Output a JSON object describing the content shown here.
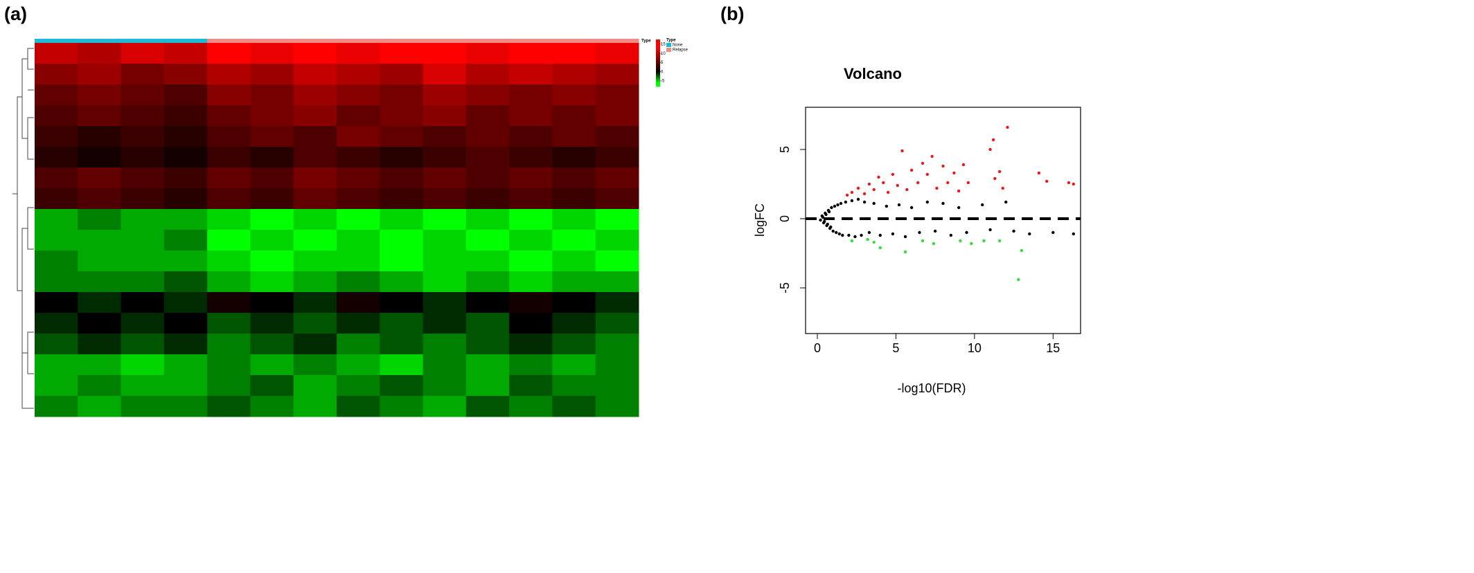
{
  "chart_data": [
    {
      "type": "heatmap",
      "panel": "(a)",
      "annotation_label": "Type",
      "legend_title": "Type",
      "types": [
        {
          "name": "None",
          "color": "#1fb8d6"
        },
        {
          "name": "Relapse",
          "color": "#f08a85"
        }
      ],
      "column_types": [
        0,
        0,
        0,
        0,
        1,
        1,
        1,
        1,
        1,
        1,
        1,
        1,
        1,
        1
      ],
      "colorbar_lim": [
        -8,
        17.6
      ],
      "colorbar_ticks": [
        15,
        10,
        5,
        0,
        -5
      ],
      "values": [
        [
          10,
          9,
          11,
          10,
          13,
          12,
          14,
          12,
          13,
          15,
          12,
          13,
          14,
          12
        ],
        [
          7,
          8,
          6,
          7,
          9,
          8,
          10,
          9,
          8,
          11,
          9,
          10,
          9,
          8
        ],
        [
          5,
          6,
          5,
          4,
          7,
          6,
          8,
          7,
          6,
          8,
          7,
          6,
          7,
          6
        ],
        [
          4,
          5,
          4,
          3,
          5,
          6,
          7,
          5,
          6,
          7,
          5,
          6,
          5,
          6
        ],
        [
          3,
          2,
          3,
          2,
          4,
          5,
          4,
          6,
          5,
          4,
          5,
          4,
          5,
          4
        ],
        [
          2,
          1,
          2,
          1,
          3,
          2,
          4,
          3,
          2,
          3,
          4,
          3,
          2,
          3
        ],
        [
          4,
          5,
          4,
          3,
          5,
          4,
          6,
          5,
          4,
          5,
          4,
          5,
          4,
          5
        ],
        [
          3,
          4,
          3,
          2,
          4,
          3,
          5,
          4,
          3,
          4,
          3,
          4,
          3,
          4
        ],
        [
          -4,
          -3,
          -4,
          -4,
          -5,
          -6,
          -5,
          -6,
          -5,
          -6,
          -5,
          -6,
          -5,
          -6
        ],
        [
          -4,
          -4,
          -4,
          -3,
          -6,
          -5,
          -6,
          -5,
          -6,
          -5,
          -6,
          -5,
          -6,
          -5
        ],
        [
          -3,
          -4,
          -4,
          -4,
          -5,
          -6,
          -5,
          -5,
          -6,
          -5,
          -5,
          -6,
          -5,
          -6
        ],
        [
          -3,
          -3,
          -3,
          -2,
          -4,
          -5,
          -4,
          -3,
          -4,
          -5,
          -4,
          -5,
          -4,
          -4
        ],
        [
          0,
          -1,
          0,
          -1,
          1,
          0,
          -1,
          1,
          0,
          -1,
          0,
          1,
          0,
          -1
        ],
        [
          -1,
          0,
          -1,
          0,
          -2,
          -1,
          -2,
          -1,
          -2,
          -1,
          -2,
          0,
          -1,
          -2
        ],
        [
          -2,
          -1,
          -2,
          -1,
          -3,
          -2,
          -1,
          -3,
          -2,
          -3,
          -2,
          -1,
          -2,
          -3
        ],
        [
          -4,
          -4,
          -5,
          -4,
          -3,
          -4,
          -3,
          -4,
          -5,
          -3,
          -4,
          -3,
          -4,
          -3
        ],
        [
          -4,
          -3,
          -4,
          -4,
          -3,
          -2,
          -4,
          -3,
          -2,
          -3,
          -4,
          -2,
          -3,
          -3
        ],
        [
          -3,
          -4,
          -3,
          -3,
          -2,
          -3,
          -4,
          -2,
          -3,
          -4,
          -2,
          -3,
          -2,
          -3
        ]
      ]
    },
    {
      "type": "scatter",
      "panel": "(b)",
      "title": "Volcano",
      "x_label": "-log10(FDR)",
      "y_label": "logFC",
      "xlim": [
        -0.75,
        16.75
      ],
      "ylim": [
        -8.3,
        8.05
      ],
      "xticks": [
        0,
        5,
        10,
        15
      ],
      "yticks": [
        -5,
        0,
        5
      ],
      "hline": 0,
      "series": [
        {
          "color": "#000000",
          "x": [
            0.3,
            0.4,
            0.5,
            0.6,
            0.7,
            0.8,
            0.9,
            1.0,
            1.1,
            1.2,
            1.3,
            1.4,
            1.5,
            1.6,
            1.8,
            2.0,
            2.2,
            2.4,
            2.6,
            2.8,
            3.0,
            3.3,
            3.6,
            4.0,
            4.4,
            4.8,
            5.2,
            5.6,
            6.0,
            6.5,
            7.0,
            7.5,
            8.0,
            8.5,
            9.0,
            9.5,
            10.5,
            11.0,
            12.0,
            12.5,
            13.5,
            15.0,
            16.3,
            0.2,
            0.35,
            0.45,
            0.55,
            0.65,
            0.75,
            0.85
          ],
          "values": [
            0.2,
            -0.3,
            0.4,
            -0.5,
            0.6,
            -0.7,
            0.8,
            -0.9,
            0.9,
            -1.0,
            1.0,
            -1.1,
            1.1,
            -1.2,
            1.2,
            -1.2,
            1.3,
            -1.3,
            1.4,
            -1.2,
            1.2,
            -1.0,
            1.1,
            -1.2,
            0.9,
            -1.1,
            1.0,
            -1.3,
            0.8,
            -1.0,
            1.2,
            -0.9,
            1.1,
            -1.2,
            0.8,
            -1.0,
            1.0,
            -0.8,
            1.2,
            -0.9,
            -1.1,
            -1.0,
            -1.1,
            -0.1,
            0.1,
            -0.2,
            0.3,
            -0.4,
            0.5,
            -0.6
          ]
        },
        {
          "color": "#e41a1c",
          "x": [
            1.9,
            2.2,
            2.6,
            3.0,
            3.3,
            3.6,
            3.9,
            4.2,
            4.5,
            4.8,
            5.1,
            5.4,
            5.7,
            6.0,
            6.4,
            6.7,
            7.0,
            7.3,
            7.6,
            8.0,
            8.3,
            8.7,
            9.0,
            9.3,
            9.6,
            11.0,
            11.2,
            11.3,
            11.6,
            11.8,
            12.1,
            14.1,
            14.6,
            16.0,
            16.3
          ],
          "values": [
            1.7,
            1.9,
            2.2,
            1.8,
            2.5,
            2.1,
            3.0,
            2.6,
            1.9,
            3.2,
            2.4,
            4.9,
            2.1,
            3.5,
            2.6,
            4.0,
            3.2,
            4.5,
            2.2,
            3.8,
            2.6,
            3.3,
            2.0,
            3.9,
            2.6,
            5.0,
            5.7,
            2.9,
            3.4,
            2.2,
            6.6,
            3.3,
            2.7,
            2.6,
            2.5
          ]
        },
        {
          "color": "#33dd33",
          "x": [
            3.2,
            4.0,
            5.6,
            6.7,
            7.4,
            9.1,
            9.8,
            10.6,
            11.6,
            13.0,
            12.8,
            3.6,
            2.2
          ],
          "values": [
            -1.5,
            -2.1,
            -2.4,
            -1.6,
            -1.8,
            -1.6,
            -1.8,
            -1.6,
            -1.6,
            -2.3,
            -4.4,
            -1.7,
            -1.6
          ]
        }
      ]
    }
  ]
}
